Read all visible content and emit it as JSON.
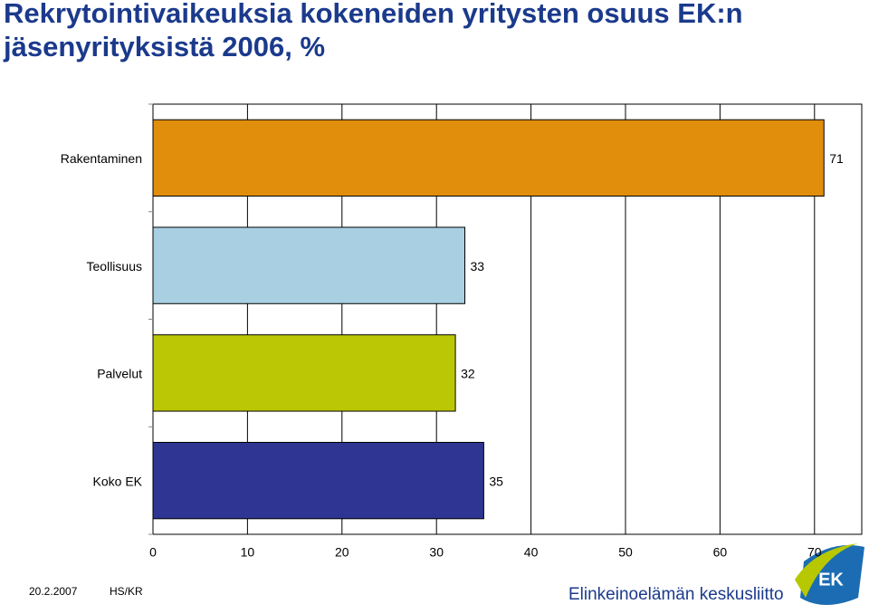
{
  "chart_data": {
    "type": "bar",
    "orientation": "horizontal",
    "title": "Rekrytointivaikeuksia kokeneiden yritysten osuus EK:n jäsenyrityksistä 2006, %",
    "categories": [
      "Rakentaminen",
      "Teollisuus",
      "Palvelut",
      "Koko EK"
    ],
    "values": [
      71,
      33,
      32,
      35
    ],
    "colors": [
      "#e08e0b",
      "#a8cfe2",
      "#bbc605",
      "#2f3592"
    ],
    "xlim": [
      0,
      75
    ],
    "xticks": [
      0,
      10,
      20,
      30,
      40,
      50,
      60,
      70
    ],
    "grid": true
  },
  "footer": {
    "date": "20.2.2007",
    "author": "HS/KR",
    "organization": "Elinkeinoelämän keskusliitto",
    "logo": "EK"
  }
}
